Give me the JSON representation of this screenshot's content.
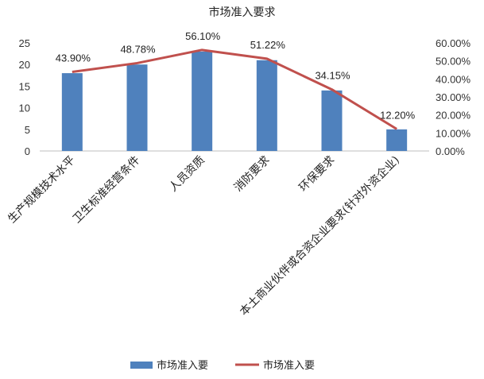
{
  "chart_data": {
    "type": "bar",
    "title": "市场准入要求",
    "categories": [
      "生产规模技术水平",
      "卫生标准经营条件",
      "人员资质",
      "消防要求",
      "环保要求",
      "本土商业伙伴或合资企业要求(针对外资企业)"
    ],
    "series": [
      {
        "name": "市场准入要",
        "type": "bar",
        "axis": "left",
        "color": "#4f81bd",
        "values": [
          18,
          20,
          23,
          21,
          14,
          5
        ]
      },
      {
        "name": "市场准入要",
        "type": "line",
        "axis": "right",
        "color": "#c0504d",
        "values": [
          43.9,
          48.78,
          56.1,
          51.22,
          34.15,
          12.2
        ],
        "data_labels": [
          "43.90%",
          "48.78%",
          "56.10%",
          "51.22%",
          "34.15%",
          "12.20%"
        ]
      }
    ],
    "y_left": {
      "min": 0,
      "max": 25,
      "ticks": [
        "0",
        "5",
        "10",
        "15",
        "20",
        "25"
      ]
    },
    "y_right": {
      "min": 0,
      "max": 60,
      "ticks": [
        "0.00%",
        "10.00%",
        "20.00%",
        "30.00%",
        "40.00%",
        "50.00%",
        "60.00%"
      ]
    },
    "grid": false,
    "legend": "bottom"
  }
}
